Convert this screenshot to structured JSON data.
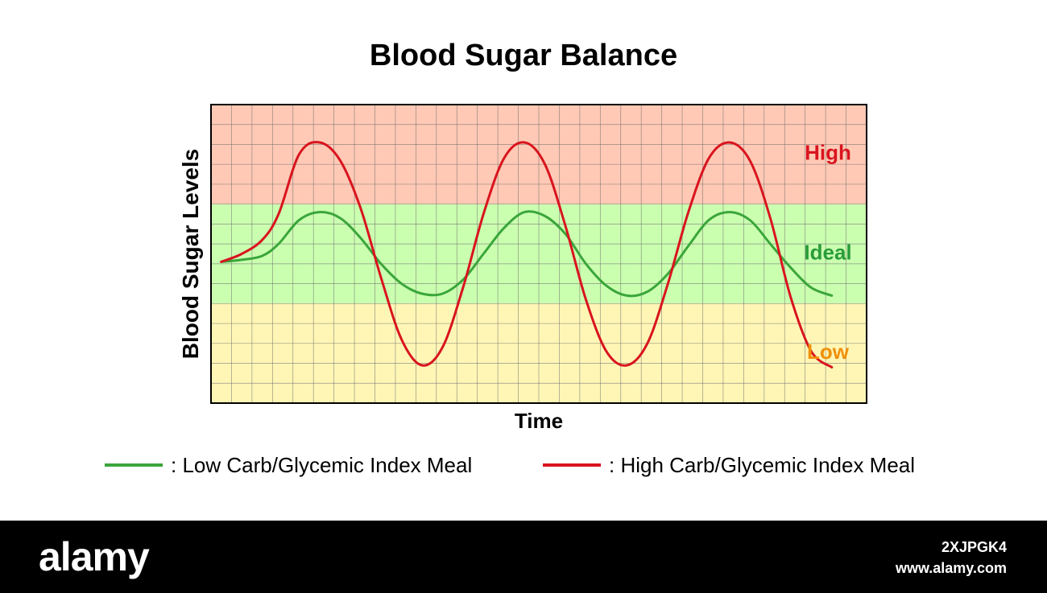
{
  "chart_data": {
    "type": "line",
    "title": "Blood Sugar Balance",
    "xlabel": "Time",
    "ylabel": "Blood Sugar Levels",
    "xlim": [
      0,
      32
    ],
    "ylim": [
      0,
      15
    ],
    "grid": true,
    "legend_position": "bottom",
    "zones": [
      {
        "label": "High",
        "from": 10,
        "to": 15,
        "color": "#ffc9b5",
        "label_color": "#d9141e"
      },
      {
        "label": "Ideal",
        "from": 5,
        "to": 10,
        "color": "#cbffb0",
        "label_color": "#2a9c3a"
      },
      {
        "label": "Low",
        "from": 0,
        "to": 5,
        "color": "#fff6b6",
        "label_color": "#f0900a"
      }
    ],
    "series": [
      {
        "name": ": Low Carb/Glycemic Index Meal",
        "color": "#3aa63a",
        "points": [
          [
            0.5,
            7.1
          ],
          [
            1.5,
            7.2
          ],
          [
            2.5,
            7.4
          ],
          [
            3.3,
            8.0
          ],
          [
            4.3,
            9.2
          ],
          [
            5.3,
            9.6
          ],
          [
            6.3,
            9.3
          ],
          [
            7.3,
            8.3
          ],
          [
            8.3,
            7.0
          ],
          [
            9.3,
            6.0
          ],
          [
            10.3,
            5.5
          ],
          [
            11.3,
            5.5
          ],
          [
            12.3,
            6.2
          ],
          [
            13.3,
            7.5
          ],
          [
            14.3,
            8.8
          ],
          [
            15.3,
            9.6
          ],
          [
            16.3,
            9.4
          ],
          [
            17.3,
            8.5
          ],
          [
            18.3,
            7.0
          ],
          [
            19.3,
            5.9
          ],
          [
            20.3,
            5.4
          ],
          [
            21.3,
            5.6
          ],
          [
            22.3,
            6.5
          ],
          [
            23.3,
            7.9
          ],
          [
            24.3,
            9.2
          ],
          [
            25.3,
            9.6
          ],
          [
            26.3,
            9.2
          ],
          [
            27.3,
            8.0
          ],
          [
            28.3,
            6.8
          ],
          [
            29.3,
            5.8
          ],
          [
            30.3,
            5.4
          ]
        ]
      },
      {
        "name": ": High Carb/Glycemic Index Meal",
        "color": "#d9141e",
        "points": [
          [
            0.5,
            7.1
          ],
          [
            1.5,
            7.5
          ],
          [
            2.5,
            8.2
          ],
          [
            3.3,
            9.5
          ],
          [
            4.3,
            12.5
          ],
          [
            5.3,
            13.1
          ],
          [
            6.3,
            12.2
          ],
          [
            7.3,
            9.8
          ],
          [
            8.3,
            6.3
          ],
          [
            9.3,
            3.2
          ],
          [
            10.3,
            1.9
          ],
          [
            11.3,
            2.8
          ],
          [
            12.3,
            5.8
          ],
          [
            13.3,
            9.5
          ],
          [
            14.3,
            12.3
          ],
          [
            15.3,
            13.1
          ],
          [
            16.3,
            12.0
          ],
          [
            17.3,
            8.9
          ],
          [
            18.3,
            5.2
          ],
          [
            19.3,
            2.6
          ],
          [
            20.3,
            1.9
          ],
          [
            21.3,
            3.0
          ],
          [
            22.3,
            6.0
          ],
          [
            23.3,
            9.6
          ],
          [
            24.3,
            12.3
          ],
          [
            25.3,
            13.1
          ],
          [
            26.3,
            12.2
          ],
          [
            27.3,
            9.3
          ],
          [
            28.3,
            5.3
          ],
          [
            29.3,
            2.6
          ],
          [
            30.3,
            1.8
          ]
        ]
      }
    ]
  },
  "footer": {
    "brand": "alamy",
    "stock_id": "2XJPGK4",
    "site": "www.alamy.com"
  }
}
